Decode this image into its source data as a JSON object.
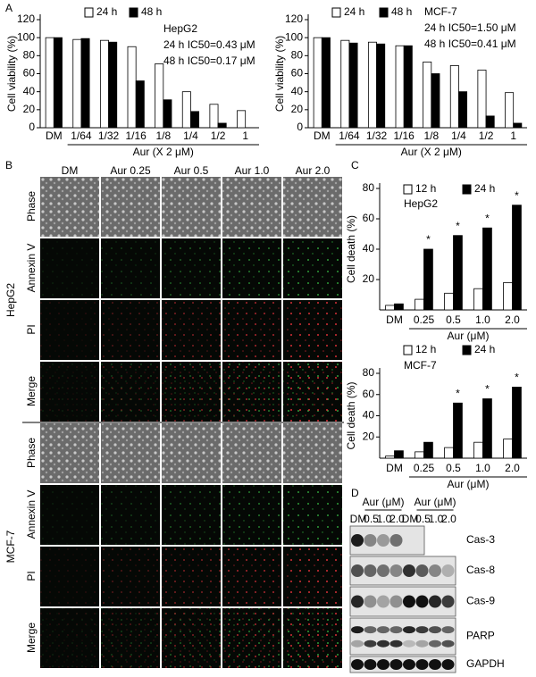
{
  "panel_labels": [
    "A",
    "B",
    "C",
    "D"
  ],
  "chart_data": [
    {
      "type": "bar",
      "title": "HepG2",
      "annotations": [
        "24 h IC50=0.43 μM",
        "48 h IC50=0.17 μM"
      ],
      "ylabel": "Cell viability (%)",
      "xlabel": "Aur (X 2 μM)",
      "categories": [
        "DM",
        "1/64",
        "1/32",
        "1/16",
        "1/8",
        "1/4",
        "1/2",
        "1"
      ],
      "series": [
        {
          "name": "24 h",
          "color": "#ffffff",
          "values": [
            100,
            98,
            97,
            90,
            71,
            40,
            26,
            19
          ]
        },
        {
          "name": "48 h",
          "color": "#000000",
          "values": [
            100,
            99,
            95,
            52,
            31,
            18,
            5,
            0
          ]
        }
      ],
      "ylim": [
        0,
        120
      ],
      "yticks": [
        0,
        20,
        40,
        60,
        80,
        100,
        120
      ]
    },
    {
      "type": "bar",
      "title": "MCF-7",
      "annotations": [
        "24 h IC50=1.50 μM",
        "48 h IC50=0.41 μM"
      ],
      "ylabel": "Cell viability (%)",
      "xlabel": "Aur (X 2 μM)",
      "categories": [
        "DM",
        "1/64",
        "1/32",
        "1/16",
        "1/8",
        "1/4",
        "1/2",
        "1"
      ],
      "series": [
        {
          "name": "24 h",
          "color": "#ffffff",
          "values": [
            100,
            97,
            95,
            91,
            73,
            69,
            64,
            39
          ]
        },
        {
          "name": "48 h",
          "color": "#000000",
          "values": [
            100,
            94,
            93,
            91,
            60,
            40,
            13,
            5
          ]
        }
      ],
      "ylim": [
        0,
        120
      ],
      "yticks": [
        0,
        20,
        40,
        60,
        80,
        100,
        120
      ]
    },
    {
      "type": "bar",
      "title": "HepG2",
      "ylabel": "Cell death (%)",
      "xlabel": "Aur (μM)",
      "categories": [
        "DM",
        "0.25",
        "0.5",
        "1.0",
        "2.0"
      ],
      "series": [
        {
          "name": "12 h",
          "color": "#ffffff",
          "values": [
            3,
            7,
            11,
            14,
            18
          ]
        },
        {
          "name": "24 h",
          "color": "#000000",
          "values": [
            4,
            40,
            49,
            54,
            69
          ]
        }
      ],
      "significance": [
        null,
        "*",
        "*",
        "*",
        "*"
      ],
      "ylim": [
        0,
        80
      ],
      "yticks": [
        20,
        40,
        60,
        80
      ]
    },
    {
      "type": "bar",
      "title": "MCF-7",
      "ylabel": "Cell death (%)",
      "xlabel": "Aur (μM)",
      "categories": [
        "DM",
        "0.25",
        "0.5",
        "1.0",
        "2.0"
      ],
      "series": [
        {
          "name": "12 h",
          "color": "#ffffff",
          "values": [
            2,
            6,
            10,
            15,
            18
          ]
        },
        {
          "name": "24 h",
          "color": "#000000",
          "values": [
            7,
            15,
            52,
            56,
            67
          ]
        }
      ],
      "significance": [
        null,
        null,
        "*",
        "*",
        "*"
      ],
      "ylim": [
        0,
        80
      ],
      "yticks": [
        20,
        40,
        60,
        80
      ]
    }
  ],
  "microscopy": {
    "columns": [
      "DM",
      "Aur 0.25",
      "Aur 0.5",
      "Aur 1.0",
      "Aur 2.0"
    ],
    "rows": [
      "Phase",
      "Annexin V",
      "PI",
      "Merge",
      "Phase",
      "Annexin V",
      "PI",
      "Merge"
    ],
    "groups": [
      "HepG2",
      "MCF-7"
    ]
  },
  "western_blot": {
    "group_labels": [
      "Aur (μM)",
      "Aur (μM)"
    ],
    "lanes": [
      "DM",
      "0.5",
      "1.0",
      "2.0",
      "DM",
      "0.5",
      "1.0",
      "2.0"
    ],
    "proteins": [
      "Cas-3",
      "Cas-8",
      "Cas-9",
      "PARP",
      "GAPDH"
    ]
  }
}
